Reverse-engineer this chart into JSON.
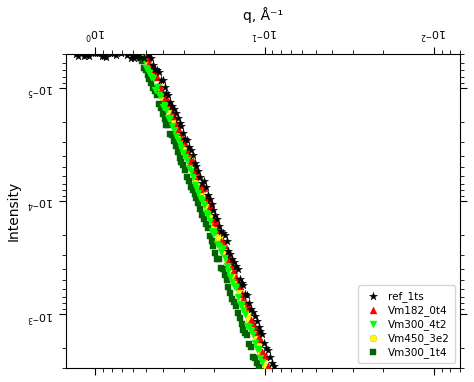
{
  "xlabel": "q, Å⁻¹",
  "ylabel": "Intensity",
  "xlim": [
    0.007,
    1.5
  ],
  "ylim": [
    5e-06,
    0.003
  ],
  "series": [
    {
      "label": "ref_1ts",
      "color": "black",
      "marker": "*",
      "ms": 6,
      "zorder": 5
    },
    {
      "label": "Vm182_0t4",
      "color": "red",
      "marker": "^",
      "ms": 5,
      "zorder": 4
    },
    {
      "label": "Vm300_4t2",
      "color": "lime",
      "marker": "v",
      "ms": 5,
      "zorder": 4
    },
    {
      "label": "Vm450_3e2",
      "color": "yellow",
      "marker": "o",
      "ms": 5,
      "zorder": 3
    },
    {
      "label": "Vm300_1t4",
      "color": "darkgreen",
      "marker": "s",
      "ms": 4,
      "zorder": 3
    }
  ]
}
